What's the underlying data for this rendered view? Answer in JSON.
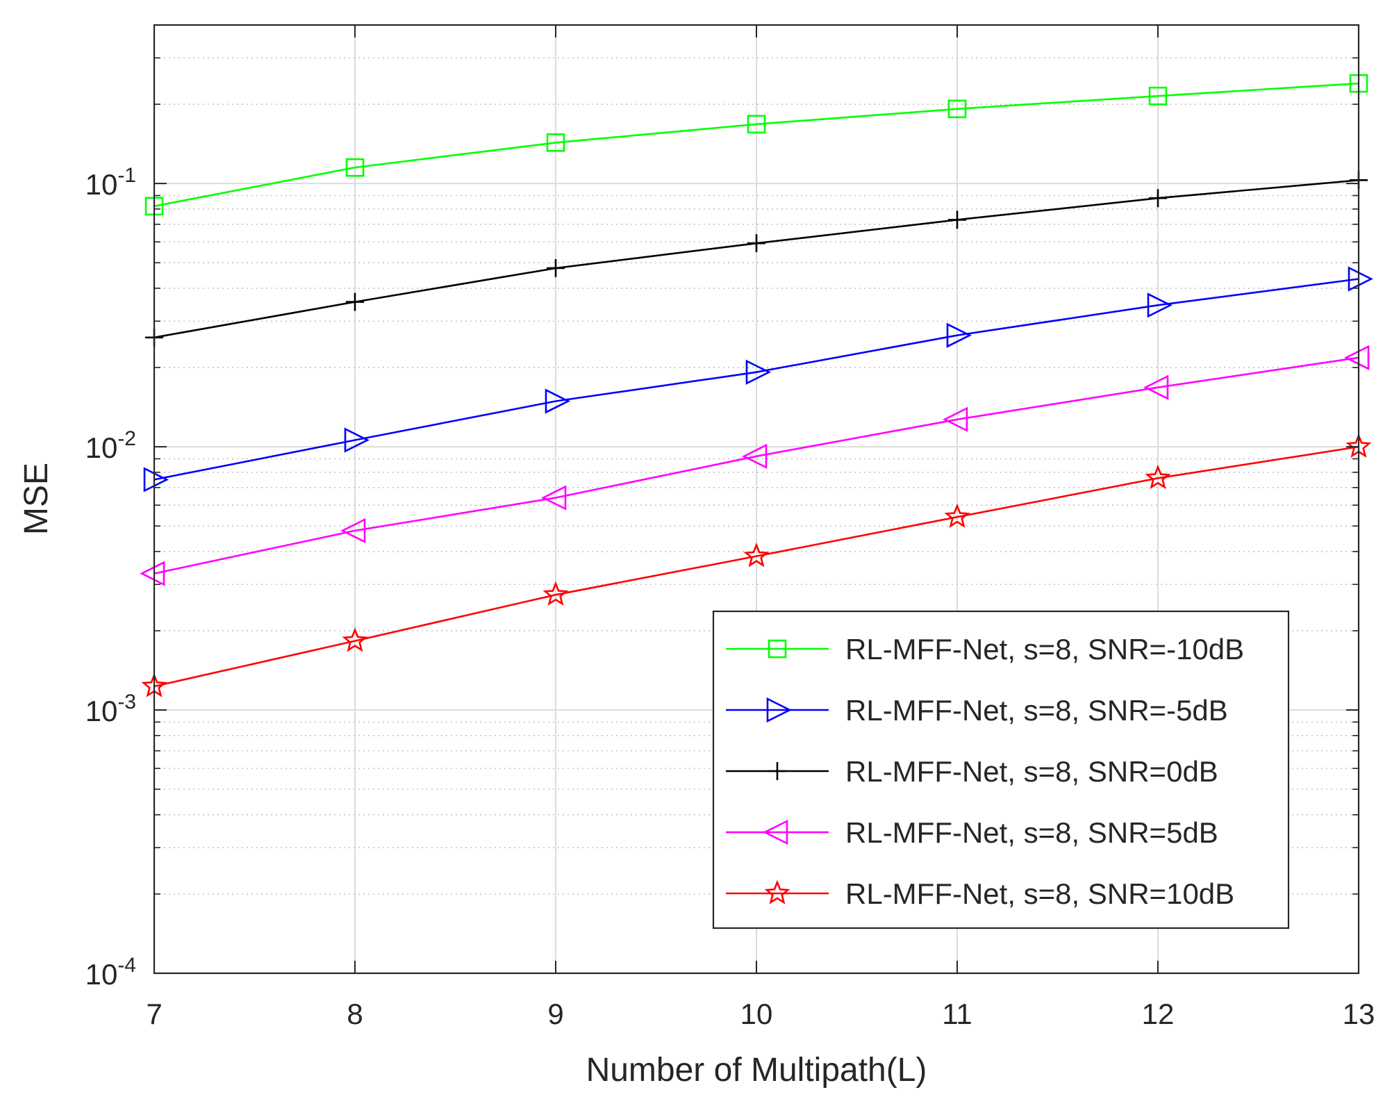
{
  "chart_data": {
    "type": "line",
    "title": "",
    "xlabel": "Number of Multipath(L)",
    "ylabel": "MSE",
    "yscale": "log",
    "xlim": [
      7,
      13
    ],
    "ylim": [
      0.0001,
      0.4
    ],
    "x": [
      7,
      8,
      9,
      10,
      11,
      12,
      13
    ],
    "x_ticks": [
      "7",
      "8",
      "9",
      "10",
      "11",
      "12",
      "13"
    ],
    "y_ticks": [
      {
        "value": 0.0001,
        "base": "10",
        "exp": "-4"
      },
      {
        "value": 0.001,
        "base": "10",
        "exp": "-3"
      },
      {
        "value": 0.01,
        "base": "10",
        "exp": "-2"
      },
      {
        "value": 0.1,
        "base": "10",
        "exp": "-1"
      }
    ],
    "grid": true,
    "legend_position": "bottom-right",
    "series": [
      {
        "name": "RL-MFF-Net, s=8, SNR=-10dB",
        "color": "#00ff00",
        "marker": "square",
        "values": [
          0.082,
          0.115,
          0.143,
          0.168,
          0.192,
          0.215,
          0.24
        ]
      },
      {
        "name": "RL-MFF-Net, s=8, SNR=-5dB",
        "color": "#0000ff",
        "marker": "triangle-right",
        "values": [
          0.0075,
          0.0106,
          0.0149,
          0.0192,
          0.0265,
          0.0345,
          0.0434
        ]
      },
      {
        "name": "RL-MFF-Net, s=8, SNR=0dB",
        "color": "#000000",
        "marker": "plus",
        "values": [
          0.026,
          0.0355,
          0.0477,
          0.0593,
          0.0728,
          0.088,
          0.103
        ]
      },
      {
        "name": "RL-MFF-Net, s=8, SNR=5dB",
        "color": "#ff00ff",
        "marker": "triangle-left",
        "values": [
          0.0033,
          0.0048,
          0.0064,
          0.0092,
          0.0127,
          0.0168,
          0.0218
        ]
      },
      {
        "name": "RL-MFF-Net, s=8, SNR=10dB",
        "color": "#ff0000",
        "marker": "star",
        "values": [
          0.00123,
          0.00183,
          0.00274,
          0.00384,
          0.00541,
          0.0076,
          0.01
        ]
      }
    ]
  }
}
